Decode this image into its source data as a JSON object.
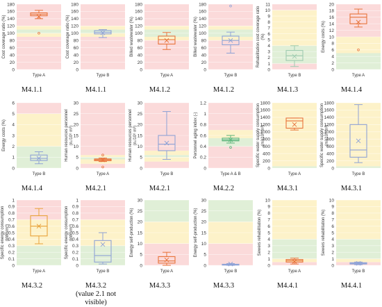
{
  "band_colors": {
    "red": "#fbdada",
    "yellow": "#fdf2c9",
    "green": "#e0efd7"
  },
  "chart_data": [
    {
      "type": "box",
      "code": "M4.1.1",
      "ylabel": "Cost coverage ratio (%)",
      "xlabel": "Type A",
      "ylim": [
        0,
        180
      ],
      "ticks": [
        0,
        20,
        40,
        60,
        80,
        100,
        120,
        140,
        160,
        180
      ],
      "bands": [
        {
          "from": 0,
          "to": 90,
          "color": "red"
        },
        {
          "from": 90,
          "to": 100,
          "color": "yellow"
        },
        {
          "from": 100,
          "to": 110,
          "color": "green"
        },
        {
          "from": 110,
          "to": 120,
          "color": "yellow"
        },
        {
          "from": 120,
          "to": 180,
          "color": "red"
        }
      ],
      "box": {
        "min": 140,
        "q1": 148,
        "median": 152,
        "q3": 156,
        "max": 163,
        "mean": 146,
        "outliers": [
          100
        ]
      },
      "box_color": "#e8743b"
    },
    {
      "type": "box",
      "code": "M4.1.1",
      "ylabel": "Cost coverage ratio (%)",
      "xlabel": "Type B",
      "ylim": [
        0,
        180
      ],
      "ticks": [
        0,
        20,
        40,
        60,
        80,
        100,
        120,
        140,
        160,
        180
      ],
      "bands": [
        {
          "from": 0,
          "to": 90,
          "color": "red"
        },
        {
          "from": 90,
          "to": 100,
          "color": "yellow"
        },
        {
          "from": 100,
          "to": 110,
          "color": "green"
        },
        {
          "from": 110,
          "to": 120,
          "color": "yellow"
        },
        {
          "from": 120,
          "to": 180,
          "color": "red"
        }
      ],
      "box": {
        "min": 88,
        "q1": 98,
        "median": 102,
        "q3": 107,
        "max": 110,
        "mean": 101,
        "outliers": []
      },
      "box_color": "#8fa3d6"
    },
    {
      "type": "box",
      "code": "M4.1.2",
      "ylabel": "Billed wastewater (%)",
      "xlabel": "Type A",
      "ylim": [
        0,
        180
      ],
      "ticks": [
        0,
        20,
        40,
        60,
        80,
        100,
        120,
        140,
        160,
        180
      ],
      "bands": [
        {
          "from": 0,
          "to": 80,
          "color": "red"
        },
        {
          "from": 80,
          "to": 90,
          "color": "yellow"
        },
        {
          "from": 90,
          "to": 110,
          "color": "green"
        },
        {
          "from": 110,
          "to": 120,
          "color": "yellow"
        },
        {
          "from": 120,
          "to": 180,
          "color": "red"
        }
      ],
      "box": {
        "min": 55,
        "q1": 70,
        "median": 82,
        "q3": 92,
        "max": 102,
        "mean": 80,
        "outliers": []
      },
      "box_color": "#e8743b"
    },
    {
      "type": "box",
      "code": "M4.1.2",
      "ylabel": "Billed wastewater (%)",
      "xlabel": "Type B",
      "ylim": [
        0,
        180
      ],
      "ticks": [
        0,
        20,
        40,
        60,
        80,
        100,
        120,
        140,
        160,
        180
      ],
      "bands": [
        {
          "from": 0,
          "to": 80,
          "color": "red"
        },
        {
          "from": 80,
          "to": 90,
          "color": "yellow"
        },
        {
          "from": 90,
          "to": 110,
          "color": "green"
        },
        {
          "from": 110,
          "to": 120,
          "color": "yellow"
        },
        {
          "from": 120,
          "to": 180,
          "color": "red"
        }
      ],
      "box": {
        "min": 45,
        "q1": 68,
        "median": 80,
        "q3": 92,
        "max": 103,
        "mean": 80,
        "outliers": [
          175
        ]
      },
      "box_color": "#8fa3d6"
    },
    {
      "type": "box",
      "code": "M4.1.3",
      "ylabel": "Rehabilitation cost coverage ratio\n(%)",
      "xlabel": "Type B",
      "ylim": [
        0,
        11
      ],
      "ticks": [
        0,
        1,
        2,
        3,
        4,
        5,
        6,
        7,
        8,
        9,
        10,
        11
      ],
      "bands": [
        {
          "from": 0,
          "to": 1,
          "color": "red"
        },
        {
          "from": 1,
          "to": 4,
          "color": "green"
        },
        {
          "from": 4,
          "to": 10,
          "color": "yellow"
        },
        {
          "from": 10,
          "to": 11,
          "color": "red"
        }
      ],
      "box": {
        "min": 0.5,
        "q1": 1.5,
        "median": 2.3,
        "q3": 3.2,
        "max": 4.0,
        "mean": 2.2,
        "outliers": []
      },
      "box_color": "#9ecbb0"
    },
    {
      "type": "box",
      "code": "M4.1.4",
      "ylabel": "Energy costs (%)",
      "xlabel": "Type A",
      "ylim": [
        0,
        20
      ],
      "ticks": [
        0,
        2,
        4,
        6,
        8,
        10,
        12,
        14,
        16,
        18,
        20
      ],
      "bands": [
        {
          "from": 0,
          "to": 5,
          "color": "green"
        },
        {
          "from": 5,
          "to": 10,
          "color": "yellow"
        },
        {
          "from": 10,
          "to": 20,
          "color": "red"
        }
      ],
      "box": {
        "min": 13,
        "q1": 14,
        "median": 16,
        "q3": 17,
        "max": 18.5,
        "mean": 14.5,
        "outliers": [
          6
        ]
      },
      "box_color": "#e8743b"
    },
    {
      "type": "box",
      "code": "M4.1.4",
      "ylabel": "Energy costs (%)",
      "xlabel": "Type B",
      "ylim": [
        0,
        6
      ],
      "ticks": [
        0,
        1,
        2,
        3,
        4,
        5,
        6
      ],
      "bands": [
        {
          "from": 0,
          "to": 2,
          "color": "green"
        },
        {
          "from": 2,
          "to": 5,
          "color": "yellow"
        },
        {
          "from": 5,
          "to": 6,
          "color": "red"
        }
      ],
      "box": {
        "min": 0.4,
        "q1": 0.7,
        "median": 0.9,
        "q3": 1.2,
        "max": 1.5,
        "mean": 0.9,
        "outliers": []
      },
      "box_color": "#8fa3d6"
    },
    {
      "type": "box",
      "code": "M4.2.1",
      "ylabel": "Human resources personnel\n(n./10⁶ m³)",
      "xlabel": "Type A",
      "ylim": [
        0,
        30
      ],
      "ticks": [
        0,
        5,
        10,
        15,
        20,
        25,
        30
      ],
      "bands": [
        {
          "from": 0,
          "to": 2,
          "color": "red"
        },
        {
          "from": 2,
          "to": 4,
          "color": "yellow"
        },
        {
          "from": 4,
          "to": 5,
          "color": "green"
        },
        {
          "from": 5,
          "to": 6,
          "color": "yellow"
        },
        {
          "from": 6,
          "to": 30,
          "color": "red"
        }
      ],
      "box": {
        "min": 3,
        "q1": 3.4,
        "median": 3.8,
        "q3": 4.2,
        "max": 4.6,
        "mean": 3.8,
        "outliers": [
          6,
          0.5
        ]
      },
      "box_color": "#e8743b"
    },
    {
      "type": "box",
      "code": "M4.2.1",
      "ylabel": "Human resources personnel\n(n./10⁶ m³)",
      "xlabel": "Type B",
      "ylim": [
        0,
        30
      ],
      "ticks": [
        0,
        5,
        10,
        15,
        20,
        25,
        30
      ],
      "bands": [
        {
          "from": 0,
          "to": 3,
          "color": "red"
        },
        {
          "from": 3,
          "to": 5,
          "color": "yellow"
        },
        {
          "from": 5,
          "to": 6,
          "color": "green"
        },
        {
          "from": 6,
          "to": 8,
          "color": "yellow"
        },
        {
          "from": 8,
          "to": 30,
          "color": "red"
        }
      ],
      "box": {
        "min": 4,
        "q1": 8,
        "median": 11,
        "q3": 15,
        "max": 26,
        "mean": 11.5,
        "outliers": []
      },
      "box_color": "#8fa3d6"
    },
    {
      "type": "box",
      "code": "M4.2.2",
      "ylabel": "Personnel aging index (-)",
      "xlabel": "Type A & B",
      "ylim": [
        0,
        1.2
      ],
      "ticks": [
        0,
        0.2,
        0.4,
        0.6,
        0.8,
        1.0,
        1.2
      ],
      "tick_labels": [
        "0",
        "0.2",
        "0.4",
        "0.6",
        "0.8",
        "1",
        "1.2"
      ],
      "bands": [
        {
          "from": 0,
          "to": 0.4,
          "color": "red"
        },
        {
          "from": 0.4,
          "to": 0.55,
          "color": "green"
        },
        {
          "from": 0.55,
          "to": 0.7,
          "color": "yellow"
        },
        {
          "from": 0.7,
          "to": 1.2,
          "color": "red"
        }
      ],
      "box": {
        "min": 0.46,
        "q1": 0.5,
        "median": 0.52,
        "q3": 0.55,
        "max": 0.6,
        "mean": 0.52,
        "outliers": [
          0.38
        ]
      },
      "box_color": "#5db57c"
    },
    {
      "type": "box",
      "code": "M4.3.1",
      "ylabel": "Specific water supply consumption\n(m³/10⁶ m³)",
      "xlabel": "Type A",
      "ylim": [
        0,
        1800
      ],
      "ticks": [
        0,
        200,
        400,
        600,
        800,
        1000,
        1200,
        1400,
        1600,
        1800
      ],
      "bands": [
        {
          "from": 0,
          "to": 50,
          "color": "green"
        },
        {
          "from": 50,
          "to": 1800,
          "color": "yellow"
        }
      ],
      "box": {
        "min": 1050,
        "q1": 1100,
        "median": 1300,
        "q3": 1380,
        "max": 1380,
        "mean": 1200,
        "outliers": []
      },
      "box_color": "#e8743b"
    },
    {
      "type": "box",
      "code": "M4.3.1",
      "ylabel": "Specific water supply consumption\n(m³/10⁶ m³)",
      "xlabel": "Type B",
      "ylim": [
        0,
        1800
      ],
      "ticks": [
        0,
        200,
        400,
        600,
        800,
        1000,
        1200,
        1400,
        1600,
        1800
      ],
      "bands": [
        {
          "from": 0,
          "to": 50,
          "color": "green"
        },
        {
          "from": 50,
          "to": 1800,
          "color": "yellow"
        }
      ],
      "box": {
        "min": 150,
        "q1": 300,
        "median": 500,
        "q3": 1200,
        "max": 1750,
        "mean": 750,
        "outliers": []
      },
      "box_color": "#8fa3d6"
    },
    {
      "type": "box",
      "code": "M4.3.2",
      "ylabel": "Specific energy consumption\n(kWh/m³)",
      "xlabel": "Type A",
      "ylim": [
        0,
        1
      ],
      "ticks": [
        0,
        0.1,
        0.2,
        0.3,
        0.4,
        0.5,
        0.6,
        0.7,
        0.8,
        0.9,
        1
      ],
      "tick_labels": [
        "0",
        "0.1",
        "0.2",
        "0.3",
        "0.4",
        "0.5",
        "0.6",
        "0.7",
        "0.8",
        "0.9",
        "1"
      ],
      "bands": [
        {
          "from": 0,
          "to": 0.3,
          "color": "green"
        },
        {
          "from": 0.3,
          "to": 0.7,
          "color": "yellow"
        },
        {
          "from": 0.7,
          "to": 1,
          "color": "red"
        }
      ],
      "box": {
        "min": 0.33,
        "q1": 0.45,
        "median": 0.6,
        "q3": 0.76,
        "max": 0.87,
        "mean": 0.6,
        "outliers": []
      },
      "box_color": "#e8a33b"
    },
    {
      "type": "box",
      "code": "M4.3.2",
      "code_note": "(value 2.1 not visible)",
      "ylabel": "Specific energy consumption\n(kWh/m³)",
      "xlabel": "Type B",
      "ylim": [
        0,
        1
      ],
      "ticks": [
        0,
        0.1,
        0.2,
        0.3,
        0.4,
        0.5,
        0.6,
        0.7,
        0.8,
        0.9,
        1
      ],
      "tick_labels": [
        "0",
        "0.1",
        "0.2",
        "0.3",
        "0.4",
        "0.5",
        "0.6",
        "0.7",
        "0.8",
        "0.9",
        "1"
      ],
      "bands": [
        {
          "from": 0,
          "to": 0.3,
          "color": "green"
        },
        {
          "from": 0.3,
          "to": 0.7,
          "color": "yellow"
        },
        {
          "from": 0.7,
          "to": 1,
          "color": "red"
        }
      ],
      "box": {
        "min": 0.02,
        "q1": 0.05,
        "median": 0.15,
        "q3": 0.38,
        "max": 0.5,
        "mean": 0.32,
        "outliers": []
      },
      "box_color": "#8fa3d6"
    },
    {
      "type": "box",
      "code": "M4.3.3",
      "ylabel": "Energy self-production (%)",
      "xlabel": "Type A",
      "ylim": [
        0,
        30
      ],
      "ticks": [
        0,
        5,
        10,
        15,
        20,
        25,
        30
      ],
      "bands": [
        {
          "from": 0,
          "to": 10,
          "color": "red"
        },
        {
          "from": 10,
          "to": 20,
          "color": "yellow"
        },
        {
          "from": 20,
          "to": 30,
          "color": "green"
        }
      ],
      "box": {
        "min": 0,
        "q1": 1,
        "median": 2,
        "q3": 4,
        "max": 6,
        "mean": 2.5,
        "outliers": []
      },
      "box_color": "#e8743b"
    },
    {
      "type": "box",
      "code": "M4.3.3",
      "ylabel": "Energy self-production (%)",
      "xlabel": "Type B",
      "ylim": [
        0,
        30
      ],
      "ticks": [
        0,
        5,
        10,
        15,
        20,
        25,
        30
      ],
      "bands": [
        {
          "from": 0,
          "to": 10,
          "color": "red"
        },
        {
          "from": 10,
          "to": 20,
          "color": "yellow"
        },
        {
          "from": 20,
          "to": 30,
          "color": "green"
        }
      ],
      "box": {
        "min": 0,
        "q1": 0.1,
        "median": 0.3,
        "q3": 0.5,
        "max": 0.8,
        "mean": 0.6,
        "outliers": []
      },
      "box_color": "#8fa3d6"
    },
    {
      "type": "box",
      "code": "M4.4.1",
      "ylabel": "Sewers rehabilitation (%)",
      "xlabel": "Type A",
      "ylim": [
        0,
        10
      ],
      "ticks": [
        0,
        1,
        2,
        3,
        4,
        5,
        6,
        7,
        8,
        9,
        10
      ],
      "bands": [
        {
          "from": 0,
          "to": 0.5,
          "color": "red"
        },
        {
          "from": 0.5,
          "to": 1,
          "color": "yellow"
        },
        {
          "from": 1,
          "to": 4,
          "color": "green"
        },
        {
          "from": 4,
          "to": 10,
          "color": "yellow"
        }
      ],
      "box": {
        "min": 0.2,
        "q1": 0.5,
        "median": 0.7,
        "q3": 0.9,
        "max": 1.1,
        "mean": 0.6,
        "outliers": []
      },
      "box_color": "#e8743b"
    },
    {
      "type": "box",
      "code": "M4.4.1",
      "ylabel": "Sewers rehabilitation (%)",
      "xlabel": "Type B",
      "ylim": [
        0,
        10
      ],
      "ticks": [
        0,
        1,
        2,
        3,
        4,
        5,
        6,
        7,
        8,
        9,
        10
      ],
      "bands": [
        {
          "from": 0,
          "to": 0.5,
          "color": "red"
        },
        {
          "from": 0.5,
          "to": 1,
          "color": "yellow"
        },
        {
          "from": 1,
          "to": 4,
          "color": "green"
        },
        {
          "from": 4,
          "to": 10,
          "color": "yellow"
        }
      ],
      "box": {
        "min": 0.1,
        "q1": 0.2,
        "median": 0.3,
        "q3": 0.4,
        "max": 0.5,
        "mean": 0.3,
        "outliers": []
      },
      "box_color": "#8fa3d6"
    }
  ]
}
